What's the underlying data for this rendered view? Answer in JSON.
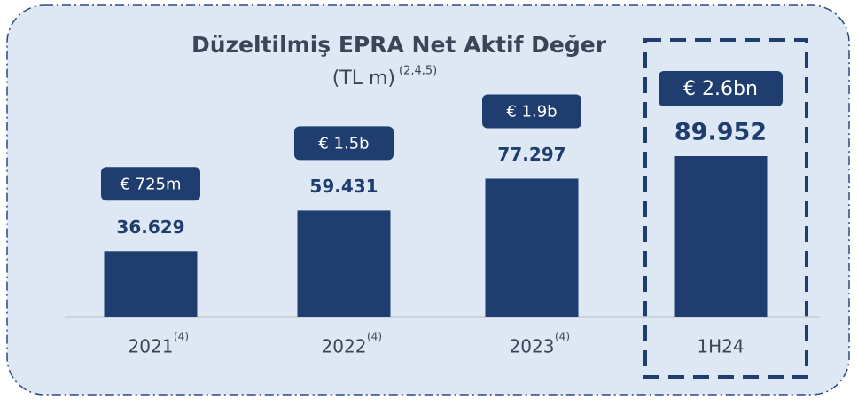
{
  "chart_data": {
    "type": "bar",
    "title": "Düzeltilmiş EPRA Net Aktif Değer",
    "subtitle": "(TL m)",
    "subtitle_note": "(2,4,5)",
    "categories": [
      "2021",
      "2022",
      "2023",
      "1H24"
    ],
    "category_notes": [
      "(4)",
      "(4)",
      "(4)",
      null
    ],
    "values": [
      36629,
      59431,
      77297,
      89952
    ],
    "value_labels": [
      "36.629",
      "59.431",
      "77.297",
      "89.952"
    ],
    "annotations": [
      "€ 725m",
      "€ 1.5b",
      "€ 1.9b",
      "€ 2.6bn"
    ],
    "color": "#1f3d6e"
  }
}
